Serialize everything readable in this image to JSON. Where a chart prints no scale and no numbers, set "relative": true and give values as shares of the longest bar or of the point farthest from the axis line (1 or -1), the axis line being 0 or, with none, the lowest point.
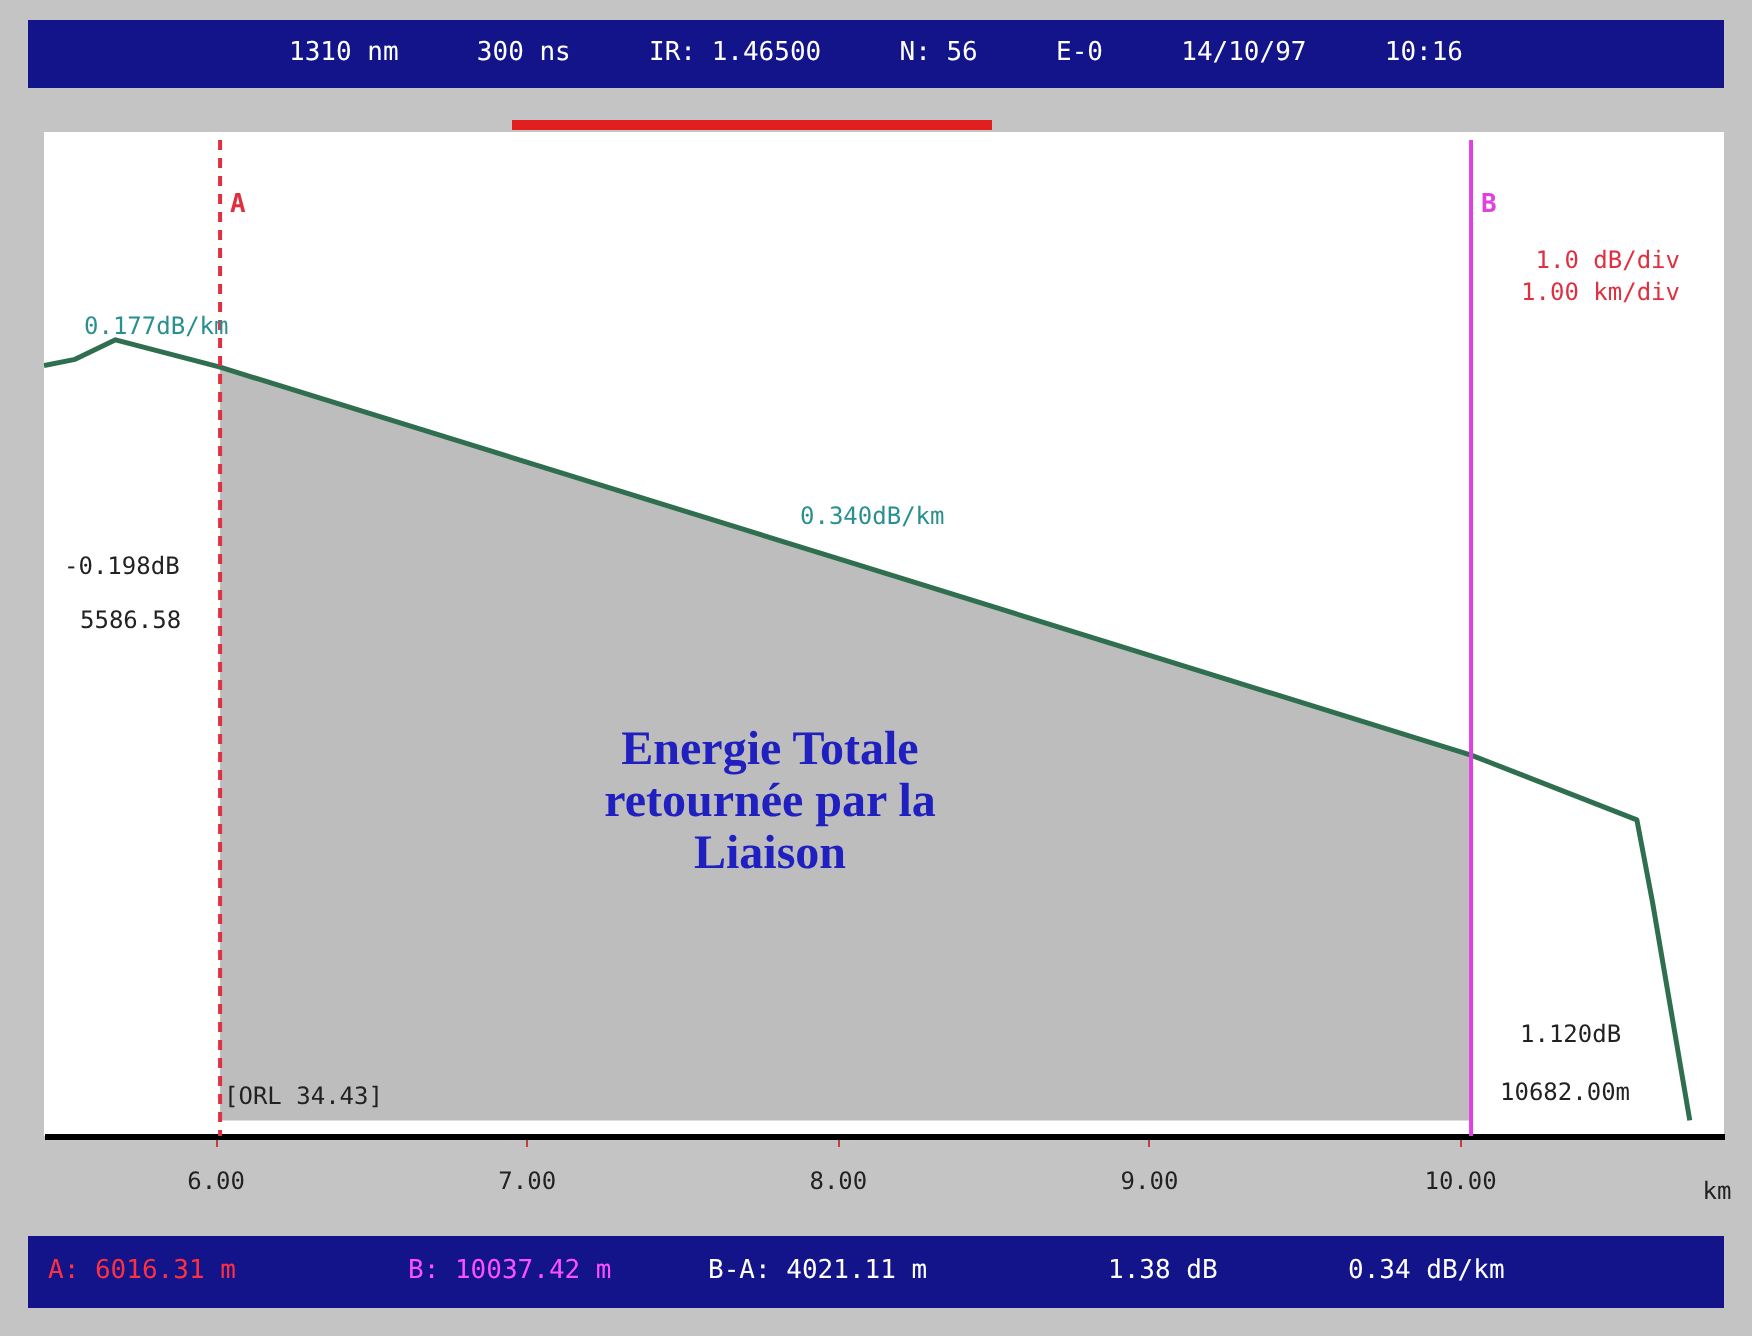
{
  "chart_data": {
    "type": "line",
    "title": "1310 nm     300 ns     IR: 1.46500     N: 56     E-0     14/10/97     10:16",
    "xlabel": "km",
    "relative": true,
    "xlim": [
      5.45,
      10.85
    ],
    "xticks": [
      {
        "value": 6,
        "label": "6.00"
      },
      {
        "value": 7,
        "label": "7.00"
      },
      {
        "value": 8,
        "label": "8.00"
      },
      {
        "value": 9,
        "label": "9.00"
      },
      {
        "value": 10,
        "label": "10.00"
      }
    ],
    "series": [
      {
        "type": "area",
        "color": "#bdbdbd",
        "x": [
          6.016,
          10.037
        ],
        "values": [
          0.965,
          0.468
        ]
      },
      {
        "color": "#2f6f50",
        "x": [
          5.45,
          5.55,
          5.68,
          6.016,
          8.0,
          10.037,
          10.57,
          10.62,
          10.74
        ],
        "values": [
          0.967,
          0.975,
          1.0,
          0.965,
          0.72,
          0.468,
          0.385,
          0.28,
          0.0
        ]
      }
    ],
    "ref_lines": [
      {
        "axis": "x",
        "value": 6.016,
        "label": "A",
        "color": "#e03040",
        "line_style": "dashed"
      },
      {
        "axis": "x",
        "value": 10.037,
        "label": "B",
        "color": "#e040e0",
        "line_style": "solid"
      }
    ],
    "annotations": [
      "A: 6016.31 m",
      "B: 10037.42 m",
      "B-A: 4021.11 m",
      "1.38 dB",
      "0.34 dB/km",
      "[ORL   34.43]",
      "1.0  dB/div",
      "1.00 km/div",
      "0.177dB/km",
      "0.340dB/km",
      "-0.198dB",
      "5586.58",
      "1.120dB",
      "10682.00m",
      "Energie Totale\nretournée par la\nLiaison"
    ]
  }
}
